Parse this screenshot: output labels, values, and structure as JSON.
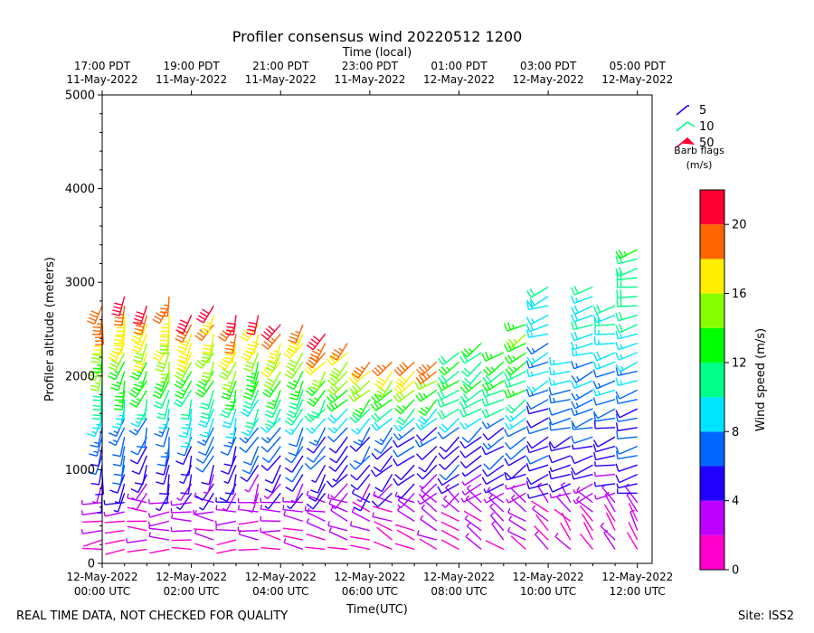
{
  "chart_data": {
    "type": "wind-barb-profile",
    "title": "Profiler consensus wind 20220512 1200",
    "xlabel": "Time(UTC)",
    "ylabel": "Profiler altitude (meters)",
    "top_xlabel": "Time (local)",
    "xlim_hours": [
      0,
      12.33
    ],
    "ylim": [
      0,
      5000
    ],
    "yticks": [
      0,
      1000,
      2000,
      3000,
      4000,
      5000
    ],
    "xticks": [
      {
        "h": 0,
        "line1": "12-May-2022",
        "line2": "00:00 UTC"
      },
      {
        "h": 2,
        "line1": "12-May-2022",
        "line2": "02:00 UTC"
      },
      {
        "h": 4,
        "line1": "12-May-2022",
        "line2": "04:00 UTC"
      },
      {
        "h": 6,
        "line1": "12-May-2022",
        "line2": "06:00 UTC"
      },
      {
        "h": 8,
        "line1": "12-May-2022",
        "line2": "08:00 UTC"
      },
      {
        "h": 10,
        "line1": "12-May-2022",
        "line2": "10:00 UTC"
      },
      {
        "h": 12,
        "line1": "12-May-2022",
        "line2": "12:00 UTC"
      }
    ],
    "top_xticks": [
      {
        "h": 0,
        "line1": "17:00 PDT",
        "line2": "11-May-2022"
      },
      {
        "h": 2,
        "line1": "19:00 PDT",
        "line2": "11-May-2022"
      },
      {
        "h": 4,
        "line1": "21:00 PDT",
        "line2": "11-May-2022"
      },
      {
        "h": 6,
        "line1": "23:00 PDT",
        "line2": "11-May-2022"
      },
      {
        "h": 8,
        "line1": "01:00 PDT",
        "line2": "12-May-2022"
      },
      {
        "h": 10,
        "line1": "03:00 PDT",
        "line2": "12-May-2022"
      },
      {
        "h": 12,
        "line1": "05:00 PDT",
        "line2": "12-May-2022"
      }
    ],
    "colorbar": {
      "label": "Wind speed (m/s)",
      "range": [
        0,
        22
      ],
      "ticks": [
        0,
        4,
        8,
        12,
        16,
        20
      ],
      "bins": [
        {
          "from": 0,
          "to": 2,
          "color": "#ff00cc"
        },
        {
          "from": 2,
          "to": 4,
          "color": "#bb00ff"
        },
        {
          "from": 4,
          "to": 6,
          "color": "#2200ff"
        },
        {
          "from": 6,
          "to": 8,
          "color": "#0066ff"
        },
        {
          "from": 8,
          "to": 10,
          "color": "#00e5ff"
        },
        {
          "from": 10,
          "to": 12,
          "color": "#00ff88"
        },
        {
          "from": 12,
          "to": 14,
          "color": "#00ff00"
        },
        {
          "from": 14,
          "to": 16,
          "color": "#88ff00"
        },
        {
          "from": 16,
          "to": 18,
          "color": "#ffee00"
        },
        {
          "from": 18,
          "to": 20,
          "color": "#ff6600"
        },
        {
          "from": 20,
          "to": 22,
          "color": "#ff0033"
        }
      ]
    },
    "barb_legend": {
      "title_line1": "Barb flags",
      "title_line2": "(m/s)",
      "entries": [
        {
          "label": "5",
          "color": "#2200ff"
        },
        {
          "label": "10",
          "color": "#00ff88"
        },
        {
          "label": "50",
          "color": "#ff0033"
        }
      ]
    },
    "profiles": [
      {
        "h": 0.0,
        "top": 2800,
        "dir": 190
      },
      {
        "h": 0.5,
        "top": 2850,
        "dir": 195
      },
      {
        "h": 1.0,
        "top": 2750,
        "dir": 200
      },
      {
        "h": 1.5,
        "top": 2850,
        "dir": 195
      },
      {
        "h": 2.0,
        "top": 2650,
        "dir": 200
      },
      {
        "h": 2.5,
        "top": 2800,
        "dir": 205
      },
      {
        "h": 3.0,
        "top": 2650,
        "dir": 200
      },
      {
        "h": 3.5,
        "top": 2650,
        "dir": 205
      },
      {
        "h": 4.0,
        "top": 2550,
        "dir": 210
      },
      {
        "h": 4.5,
        "top": 2600,
        "dir": 210
      },
      {
        "h": 5.0,
        "top": 2450,
        "dir": 215
      },
      {
        "h": 5.5,
        "top": 2400,
        "dir": 220
      },
      {
        "h": 6.0,
        "top": 2200,
        "dir": 220
      },
      {
        "h": 6.5,
        "top": 2200,
        "dir": 225
      },
      {
        "h": 7.0,
        "top": 2200,
        "dir": 225
      },
      {
        "h": 7.5,
        "top": 2200,
        "dir": 230
      },
      {
        "h": 8.0,
        "top": 2300,
        "dir": 235
      },
      {
        "h": 8.5,
        "top": 2350,
        "dir": 235
      },
      {
        "h": 9.0,
        "top": 2250,
        "dir": 240
      },
      {
        "h": 9.5,
        "top": 2600,
        "dir": 240
      },
      {
        "h": 10.0,
        "top": 2950,
        "dir": 245
      },
      {
        "h": 10.5,
        "top": 2150,
        "dir": 250
      },
      {
        "h": 11.0,
        "top": 3000,
        "dir": 250
      },
      {
        "h": 11.5,
        "top": 2800,
        "dir": 255
      },
      {
        "h": 12.0,
        "top": 3350,
        "dir": 255
      }
    ]
  },
  "footer": {
    "left": "REAL TIME DATA, NOT CHECKED FOR QUALITY",
    "right": "Site: ISS2"
  }
}
